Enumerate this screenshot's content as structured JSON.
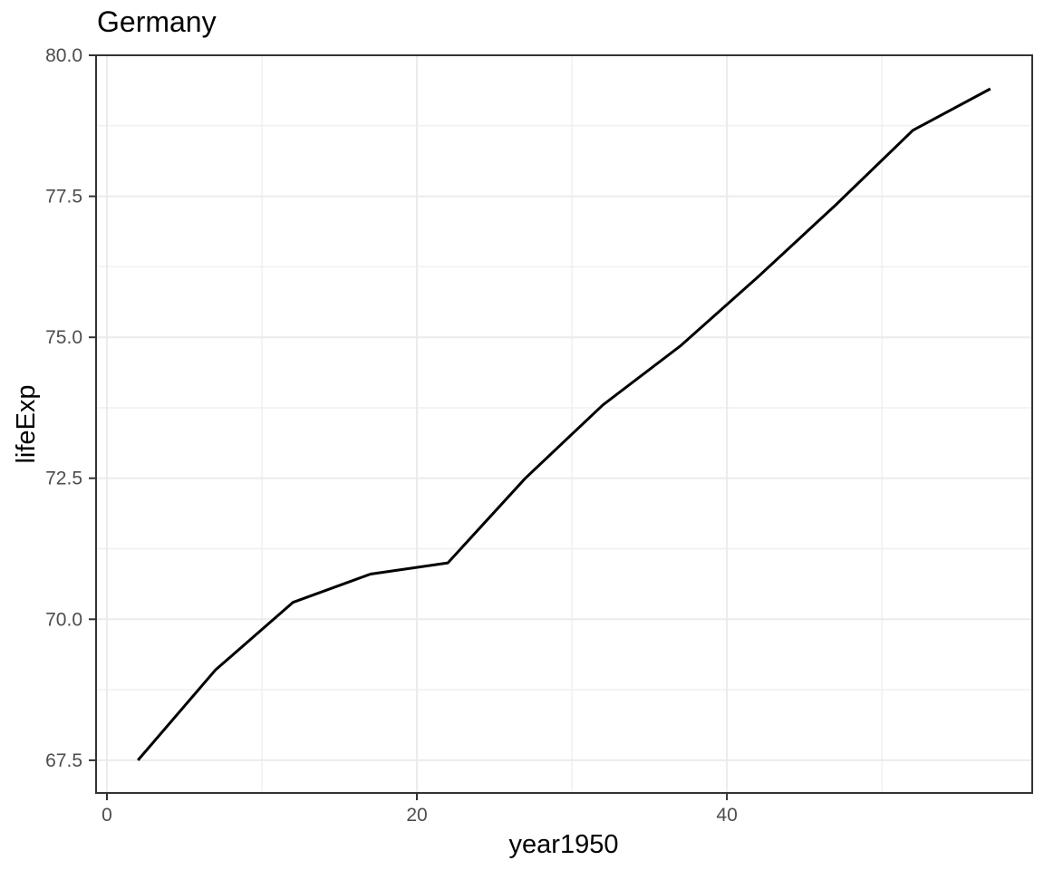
{
  "chart_data": {
    "type": "line",
    "title": "Germany",
    "xlabel": "year1950",
    "ylabel": "lifeExp",
    "series": [
      {
        "name": "Germany",
        "x": [
          2,
          7,
          12,
          17,
          22,
          27,
          32,
          37,
          42,
          47,
          52,
          57
        ],
        "y": [
          67.5,
          69.1,
          70.3,
          70.8,
          71.0,
          72.5,
          73.8,
          74.847,
          76.07,
          77.34,
          78.67,
          79.406
        ]
      }
    ],
    "xlim": [
      -0.7,
      59.7
    ],
    "ylim": [
      66.92,
      80.0
    ],
    "x_major_ticks": [
      0,
      20,
      40
    ],
    "x_tick_labels": [
      "0",
      "20",
      "40"
    ],
    "x_minor_ticks": [
      10,
      30,
      50
    ],
    "y_major_ticks": [
      67.5,
      70.0,
      72.5,
      75.0,
      77.5,
      80.0
    ],
    "y_tick_labels": [
      "67.5",
      "70.0",
      "72.5",
      "75.0",
      "77.5",
      "80.0"
    ],
    "y_minor_ticks": [
      68.75,
      71.25,
      73.75,
      76.25,
      78.75
    ],
    "grid": true,
    "legend_visible": false,
    "colors": {
      "line": "#000000",
      "grid_major": "#ebebeb",
      "grid_minor": "#f0f0f0",
      "panel_border": "#333333",
      "tick": "#333333",
      "tick_label": "#4d4d4d",
      "title_text": "#000000",
      "background": "#ffffff"
    }
  }
}
